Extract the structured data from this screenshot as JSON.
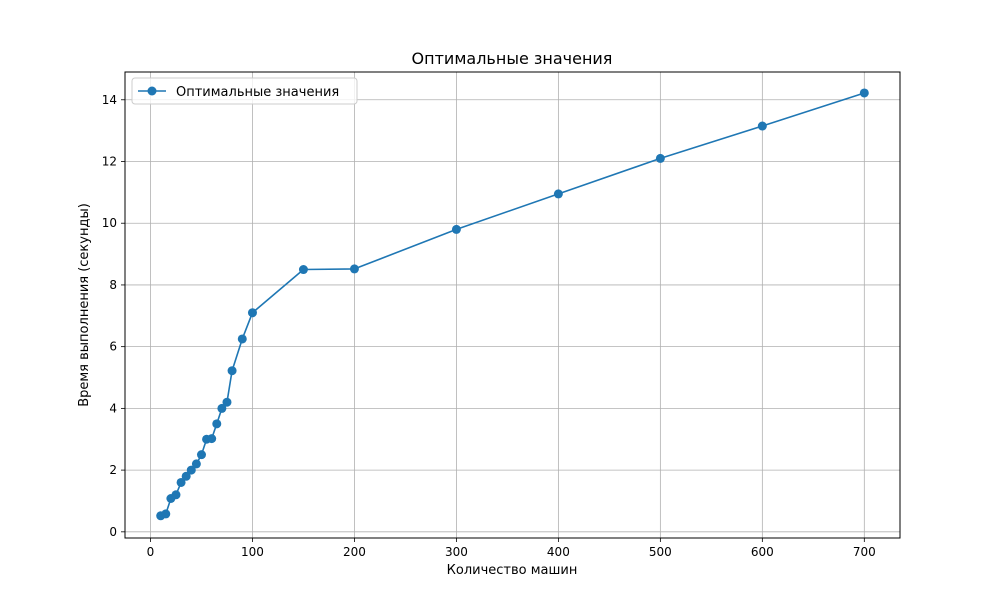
{
  "chart_data": {
    "type": "line",
    "title": "Оптимальные значения",
    "xlabel": "Количество машин",
    "ylabel": "Время выполнения (секунды)",
    "xlim": [
      -25,
      735
    ],
    "ylim": [
      -0.2,
      14.9
    ],
    "xticks": [
      0,
      100,
      200,
      300,
      400,
      500,
      600,
      700
    ],
    "yticks": [
      0,
      2,
      4,
      6,
      8,
      10,
      12,
      14
    ],
    "grid": true,
    "legend_position": "top-left",
    "series": [
      {
        "name": "Оптимальные значения",
        "color": "#1f77b4",
        "marker": "circle",
        "x": [
          10,
          15,
          20,
          25,
          30,
          35,
          40,
          45,
          50,
          55,
          60,
          65,
          70,
          75,
          80,
          90,
          100,
          150,
          200,
          300,
          400,
          500,
          600,
          700
        ],
        "y": [
          0.52,
          0.58,
          1.08,
          1.2,
          1.6,
          1.8,
          2.0,
          2.2,
          2.5,
          3.0,
          3.02,
          3.5,
          4.0,
          4.2,
          5.22,
          6.25,
          7.1,
          8.5,
          8.52,
          9.8,
          10.95,
          12.1,
          13.15,
          14.22
        ]
      }
    ]
  }
}
